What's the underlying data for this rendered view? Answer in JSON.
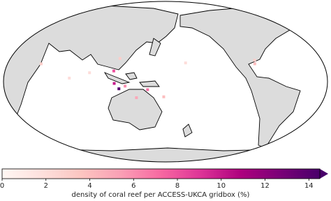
{
  "chart_data": {
    "type": "map",
    "colorbar_label": "density of coral reef per ACCESS-UKCA gridbox (%)",
    "colorbar_lim": [
      0,
      14.5
    ],
    "colorbar_ticks": [
      0,
      2,
      4,
      6,
      8,
      10,
      12,
      14
    ],
    "colormap": [
      "#fff7f3",
      "#fde0dd",
      "#fcc5c0",
      "#fa9fb5",
      "#f768a1",
      "#dd3497",
      "#ae017e",
      "#7a0177",
      "#49006a"
    ],
    "central_longitude": 180,
    "reefs": {
      "lon": [
        38,
        73,
        95,
        122,
        127,
        123,
        128,
        135,
        147,
        160,
        178,
        -157,
        -78,
        -77
      ],
      "lat": [
        20,
        4,
        10,
        12,
        26,
        -2,
        -8,
        -5,
        -18,
        -9,
        -17,
        21,
        20,
        24
      ],
      "values": [
        3,
        2,
        2,
        8,
        3,
        10,
        14,
        6,
        5,
        7,
        4,
        2,
        4,
        3
      ]
    }
  }
}
